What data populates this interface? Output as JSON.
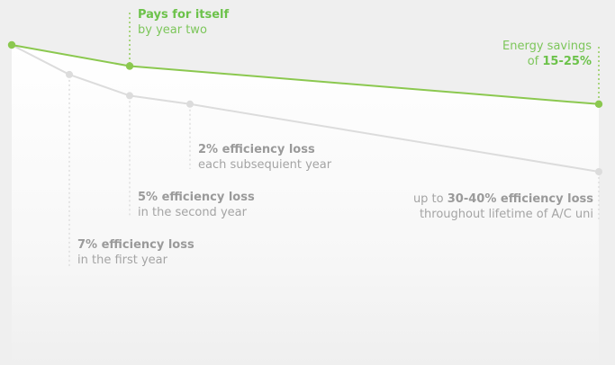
{
  "colors": {
    "green": "#8bc84f",
    "grey": "#dcdcdc",
    "label_grey": "#9a9a9a",
    "label_green": "#6cc24a",
    "background": "#efefef"
  },
  "chart_data": {
    "type": "line",
    "x": [
      0,
      1,
      2,
      3,
      10
    ],
    "series": [
      {
        "key": "with_service",
        "color": "#8bc84f",
        "values": [
          100,
          null,
          95,
          null,
          86
        ]
      },
      {
        "key": "without_service",
        "color": "#dcdcdc",
        "values": [
          100,
          93,
          88,
          86,
          70
        ]
      }
    ],
    "markers_green": [
      0,
      2,
      4
    ],
    "markers_grey": [
      1,
      2,
      3,
      4
    ],
    "gridlines": false,
    "legend": "none"
  },
  "annotations": {
    "pays_for_itself": {
      "bold": "Pays for itself",
      "plain": "by year two"
    },
    "energy_savings": {
      "prefix": "Energy savings",
      "of": "of ",
      "bold": "15-25%"
    },
    "loss_2": {
      "bold": "2% efficiency loss",
      "plain": "each subsequient year"
    },
    "loss_5": {
      "bold": "5% efficiency loss",
      "plain": "in the second year"
    },
    "loss_7": {
      "bold": "7% efficiency loss",
      "plain": "in the first year"
    },
    "loss_lifetime": {
      "prefix": "up to ",
      "bold": "30-40% efficiency loss",
      "plain": "throughout lifetime of A/C uni"
    }
  }
}
